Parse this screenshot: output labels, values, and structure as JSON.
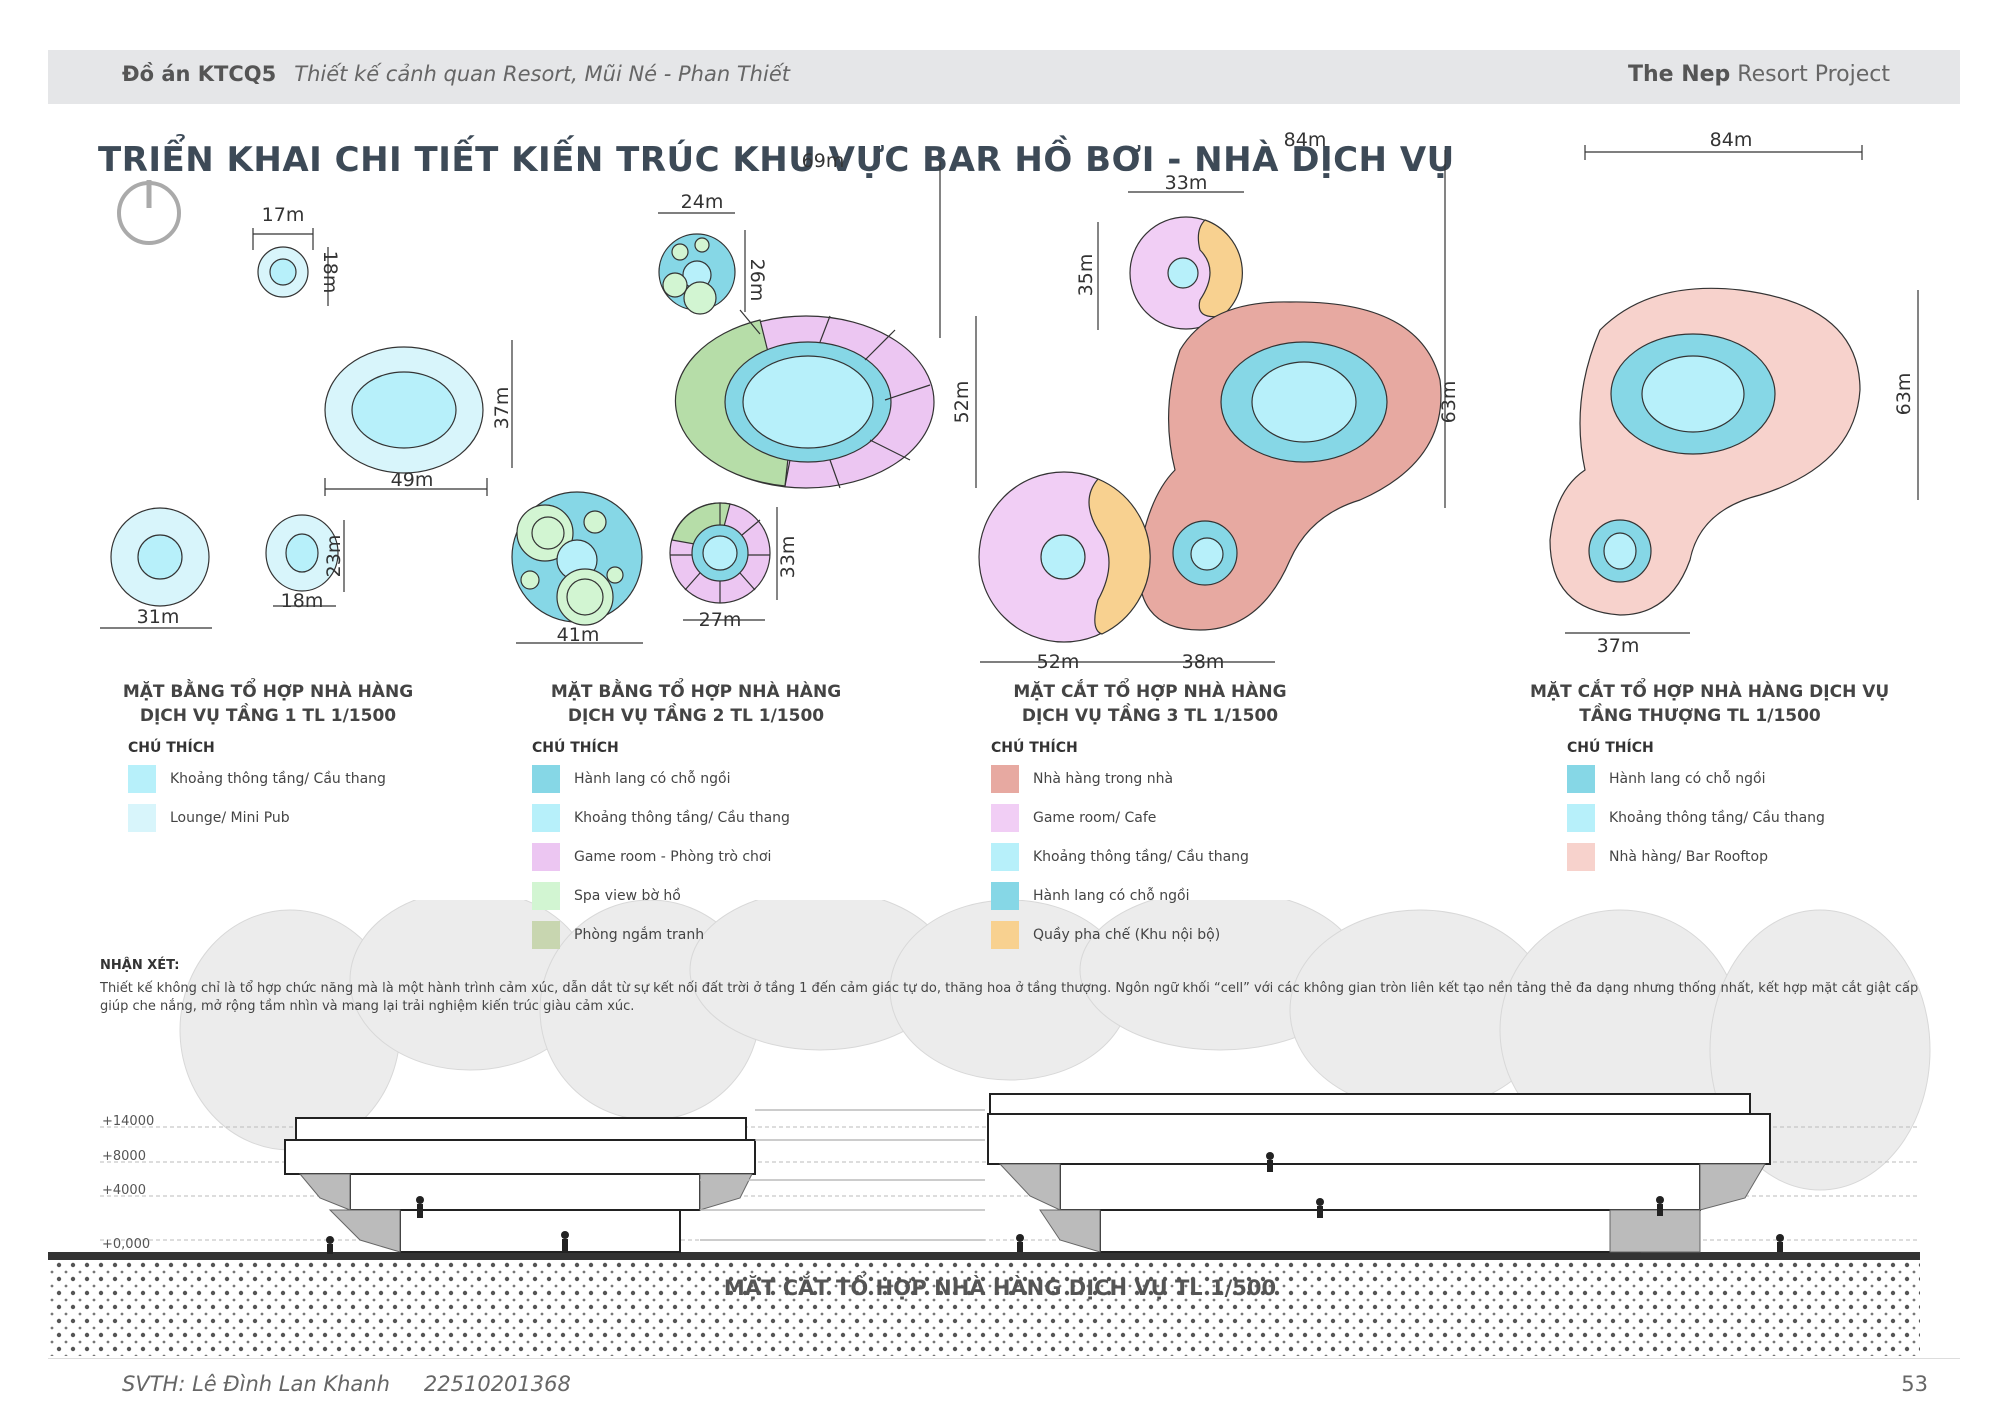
{
  "header": {
    "project_code": "Đồ án KTCQ5",
    "project_subtitle": "Thiết kế cảnh quan Resort,  Mũi Né - Phan Thiết",
    "brand_bold": "The Nep",
    "brand_rest": "Resort Project"
  },
  "title": "TRIỂN KHAI CHI TIẾT KIẾN TRÚC KHU VỰC BAR HỒ BƠI - NHÀ DỊCH VỤ",
  "dimensions": {
    "d17": "17m",
    "d18a": "18m",
    "d49": "49m",
    "d37": "37m",
    "d31": "31m",
    "d18b": "18m",
    "d23": "23m",
    "d24": "24m",
    "d26": "26m",
    "d69": "69m",
    "d52a": "52m",
    "d41": "41m",
    "d27": "27m",
    "d33a": "33m",
    "d84a": "84m",
    "d33b": "33m",
    "d35": "35m",
    "d63a": "63m",
    "d52b": "52m",
    "d38": "38m",
    "d84b": "84m",
    "d63b": "63m",
    "d37b": "37m"
  },
  "captions": [
    {
      "line1": "MẶT BẰNG TỔ HỢP NHÀ HÀNG",
      "line2": "DỊCH VỤ TẦNG 1  TL 1/1500"
    },
    {
      "line1": "MẶT BẰNG TỔ HỢP NHÀ HÀNG",
      "line2": "DỊCH VỤ TẦNG 2  TL 1/1500"
    },
    {
      "line1": "MẶT CẮT TỔ HỢP NHÀ HÀNG",
      "line2": "DỊCH VỤ TẦNG 3  TL 1/1500"
    },
    {
      "line1": "MẶT CẮT TỔ HỢP NHÀ HÀNG DỊCH VỤ",
      "line2": "TẦNG THƯỢNG TL 1/1500"
    }
  ],
  "legend_heading": "CHÚ THÍCH",
  "legends": [
    [
      {
        "label": "Khoảng thông tầng/ Cầu thang",
        "color": "#b7f0fa"
      },
      {
        "label": "Lounge/ Mini Pub",
        "color": "#d8f5fb"
      }
    ],
    [
      {
        "label": "Hành lang có chỗ ngồi",
        "color": "#86d7e6"
      },
      {
        "label": "Khoảng thông tầng/ Cầu thang",
        "color": "#b7f0fa"
      },
      {
        "label": "Game room - Phòng trò chơi",
        "color": "#ecc6f2"
      },
      {
        "label": "Spa view bờ hồ",
        "color": "#d2f5d2"
      },
      {
        "label": "Phòng ngắm tranh",
        "color": "#c8d6b0"
      }
    ],
    [
      {
        "label": "Nhà hàng trong nhà",
        "color": "#e7a9a1"
      },
      {
        "label": "Game room/ Cafe",
        "color": "#f1cef5"
      },
      {
        "label": "Khoảng thông tầng/ Cầu thang",
        "color": "#b7f0fa"
      },
      {
        "label": "Hành lang có chỗ ngồi",
        "color": "#86d7e6"
      },
      {
        "label": "Quầy pha chế (Khu nội bộ)",
        "color": "#f8d190"
      }
    ],
    [
      {
        "label": "Hành lang có chỗ ngồi",
        "color": "#86d7e6"
      },
      {
        "label": "Khoảng thông tầng/ Cầu thang",
        "color": "#b7f0fa"
      },
      {
        "label": "Nhà hàng/ Bar Rooftop",
        "color": "#f7d2cc"
      }
    ]
  ],
  "note": {
    "heading": "NHẬN XÉT:",
    "text": "Thiết kế không chỉ là tổ hợp chức năng mà là một hành trình cảm xúc, dẫn dắt từ sự kết nối đất trời ở tầng 1 đến cảm giác tự do, thăng hoa ở tầng thượng. Ngôn ngữ khối “cell” với các không gian tròn liên kết tạo nền tảng thẻ đa dạng nhưng thống nhất, kết hợp mặt cắt giật cấp giúp che nắng, mở rộng tầm nhìn và mang lại trải nghiệm kiến trúc giàu cảm xúc."
  },
  "levels": [
    "+14000",
    "+8000",
    "+4000",
    "+0,000"
  ],
  "section_title": "MẶT CẮT TỔ HỢP NHÀ HÀNG DỊCH VỤ  TL 1/500",
  "footer": {
    "student": "SVTH:  Lê Đình Lan Khanh",
    "id": "22510201368",
    "page": "53"
  }
}
